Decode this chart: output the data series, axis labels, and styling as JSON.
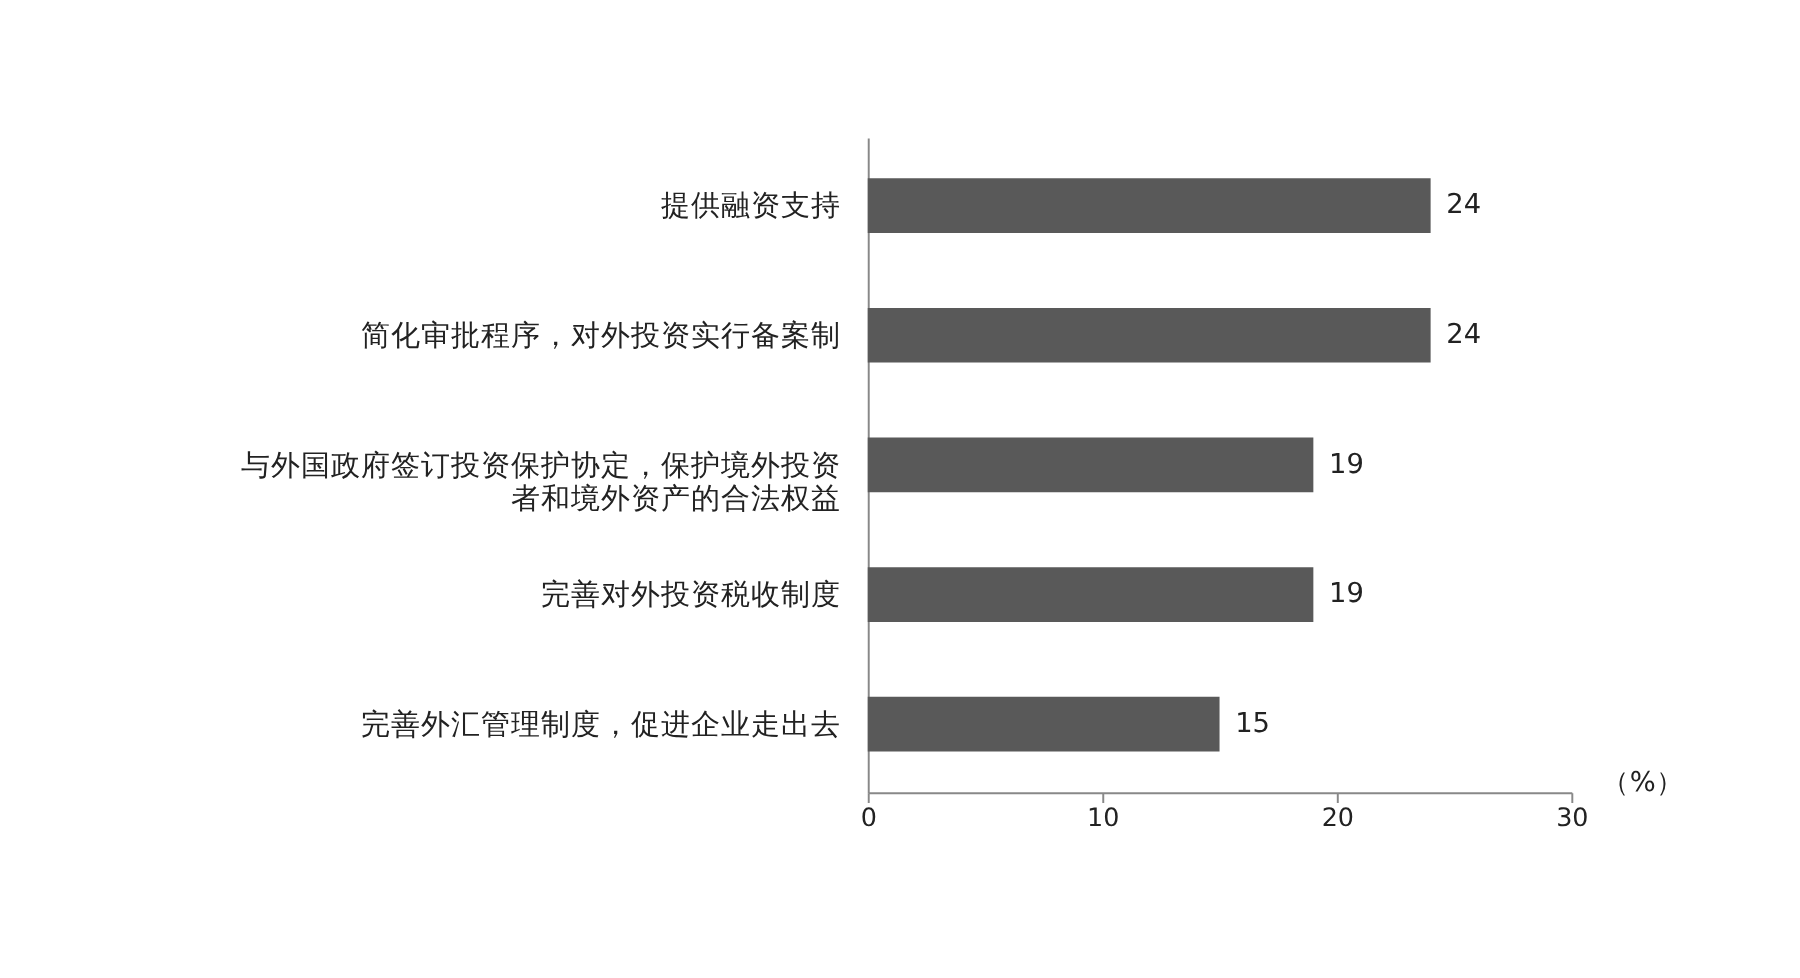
{
  "chart_data": {
    "type": "bar",
    "orientation": "horizontal",
    "xlabel": "（%）",
    "categories": [
      "提供融资支持",
      "简化审批程序，对外投资实行备案制",
      "与外国政府签订投资保护协定，保护境外投资者和境外资产的合法权益",
      "完善对外投资税收制度",
      "完善外汇管理制度，促进企业走出去"
    ],
    "values": [
      24,
      24,
      19,
      19,
      15
    ],
    "color": "#595959",
    "xlim": [
      0,
      30
    ],
    "xticks": [
      0,
      10,
      20,
      30
    ],
    "grid": false,
    "data_labels": true
  }
}
